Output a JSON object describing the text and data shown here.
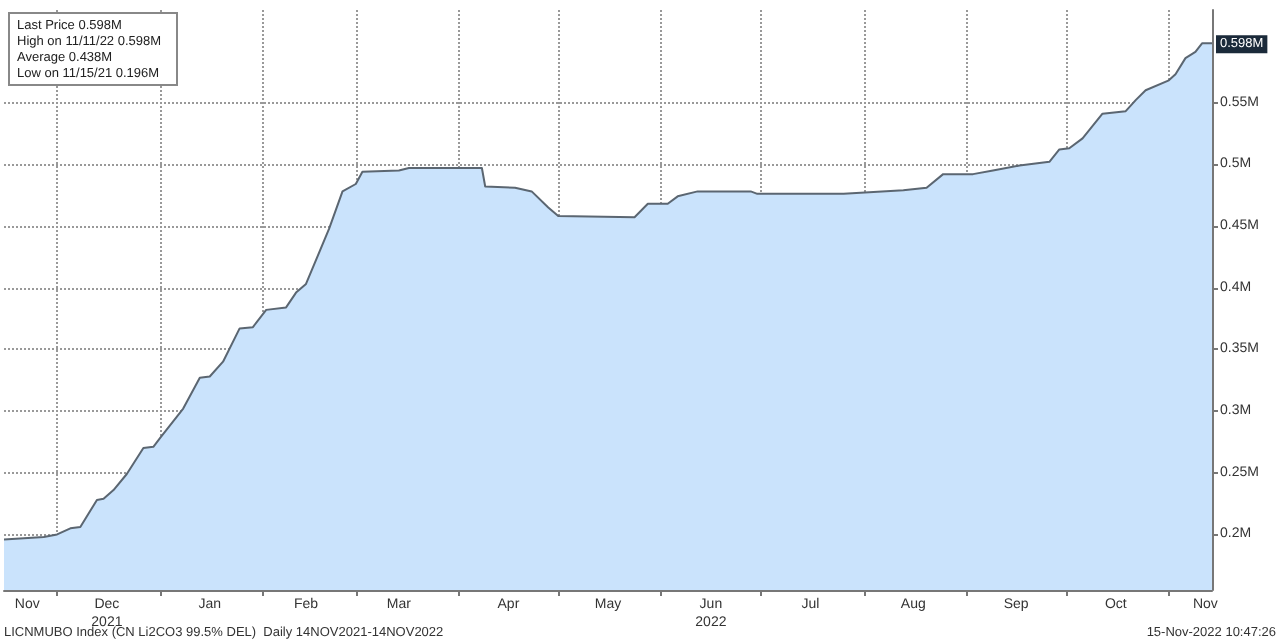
{
  "chart_data": {
    "type": "area",
    "x": [
      "2021-11-15",
      "2021-11-27",
      "2021-12-01",
      "2021-12-05",
      "2021-12-08",
      "2021-12-13",
      "2021-12-15",
      "2021-12-18",
      "2021-12-22",
      "2021-12-27",
      "2021-12-30",
      "2022-01-01",
      "2022-01-08",
      "2022-01-13",
      "2022-01-16",
      "2022-01-20",
      "2022-01-25",
      "2022-01-29",
      "2022-02-02",
      "2022-02-08",
      "2022-02-11",
      "2022-02-14",
      "2022-02-21",
      "2022-02-25",
      "2022-03-01",
      "2022-03-03",
      "2022-03-14",
      "2022-03-17",
      "2022-04-08",
      "2022-04-09",
      "2022-04-18",
      "2022-04-23",
      "2022-04-28",
      "2022-05-01",
      "2022-05-24",
      "2022-05-28",
      "2022-06-03",
      "2022-06-06",
      "2022-06-12",
      "2022-06-28",
      "2022-06-30",
      "2022-07-26",
      "2022-08-13",
      "2022-08-20",
      "2022-08-25",
      "2022-09-03",
      "2022-09-09",
      "2022-09-17",
      "2022-09-26",
      "2022-09-29",
      "2022-10-02",
      "2022-10-06",
      "2022-10-12",
      "2022-10-19",
      "2022-10-22",
      "2022-10-25",
      "2022-11-01",
      "2022-11-03",
      "2022-11-06",
      "2022-11-09",
      "2022-11-11",
      "2022-11-14"
    ],
    "series": [
      {
        "color": "#cae3fc",
        "values": [
          0.196,
          0.198,
          0.2,
          0.205,
          0.206,
          0.228,
          0.229,
          0.236,
          0.249,
          0.27,
          0.271,
          0.278,
          0.302,
          0.327,
          0.328,
          0.34,
          0.367,
          0.368,
          0.382,
          0.384,
          0.396,
          0.403,
          0.448,
          0.478,
          0.484,
          0.494,
          0.495,
          0.497,
          0.497,
          0.482,
          0.481,
          0.478,
          0.465,
          0.458,
          0.457,
          0.468,
          0.468,
          0.474,
          0.478,
          0.478,
          0.476,
          0.476,
          0.479,
          0.481,
          0.492,
          0.492,
          0.495,
          0.499,
          0.502,
          0.512,
          0.513,
          0.521,
          0.541,
          0.543,
          0.552,
          0.56,
          0.568,
          0.573,
          0.586,
          0.591,
          0.598,
          0.598
        ]
      }
    ],
    "xlim": [
      "2021-11-15",
      "2022-11-14"
    ],
    "xticks": [
      {
        "value": "2021-11-22",
        "label": "Nov"
      },
      {
        "value": "2021-12-01",
        "label": null
      },
      {
        "value": "2021-12-16",
        "label": "Dec\n2021"
      },
      {
        "value": "2022-01-01",
        "label": null
      },
      {
        "value": "2022-01-16",
        "label": "Jan"
      },
      {
        "value": "2022-02-01",
        "label": null
      },
      {
        "value": "2022-02-14",
        "label": "Feb"
      },
      {
        "value": "2022-03-01",
        "label": null
      },
      {
        "value": "2022-03-14",
        "label": "Mar"
      },
      {
        "value": "2022-04-01",
        "label": null
      },
      {
        "value": "2022-04-16",
        "label": "Apr"
      },
      {
        "value": "2022-05-01",
        "label": null
      },
      {
        "value": "2022-05-16",
        "label": "May"
      },
      {
        "value": "2022-06-01",
        "label": null
      },
      {
        "value": "2022-06-16",
        "label": "Jun\n2022"
      },
      {
        "value": "2022-07-01",
        "label": null
      },
      {
        "value": "2022-07-16",
        "label": "Jul"
      },
      {
        "value": "2022-08-01",
        "label": null
      },
      {
        "value": "2022-08-16",
        "label": "Aug"
      },
      {
        "value": "2022-09-01",
        "label": null
      },
      {
        "value": "2022-09-16",
        "label": "Sep"
      },
      {
        "value": "2022-10-01",
        "label": null
      },
      {
        "value": "2022-10-16",
        "label": "Oct"
      },
      {
        "value": "2022-11-01",
        "label": null
      },
      {
        "value": "2022-11-12",
        "label": "Nov"
      }
    ],
    "ylim": [
      0.155,
      0.625
    ],
    "yticks": [
      {
        "value": 0.2,
        "label": "0.2M"
      },
      {
        "value": 0.25,
        "label": "0.25M"
      },
      {
        "value": 0.3,
        "label": "0.3M"
      },
      {
        "value": 0.35,
        "label": "0.35M"
      },
      {
        "value": 0.4,
        "label": "0.4M"
      },
      {
        "value": 0.45,
        "label": "0.45M"
      },
      {
        "value": 0.5,
        "label": "0.5M"
      },
      {
        "value": 0.55,
        "label": "0.55M"
      }
    ],
    "annotations": [
      "Last Price 0.598M",
      "High on 11/11/22 0.598M",
      "Average 0.438M",
      "Low on 11/15/21 0.196M",
      {
        "text": "0.598M",
        "x": "2022-11-14",
        "y": 0.598
      },
      "LICNMUBO Index (CN Li2CO3 99.5% DEL)  Daily 14NOV2021-14NOV2022",
      "15-Nov-2022 10:47:26"
    ],
    "grid": true,
    "marker": "none",
    "line_style": "solid"
  }
}
